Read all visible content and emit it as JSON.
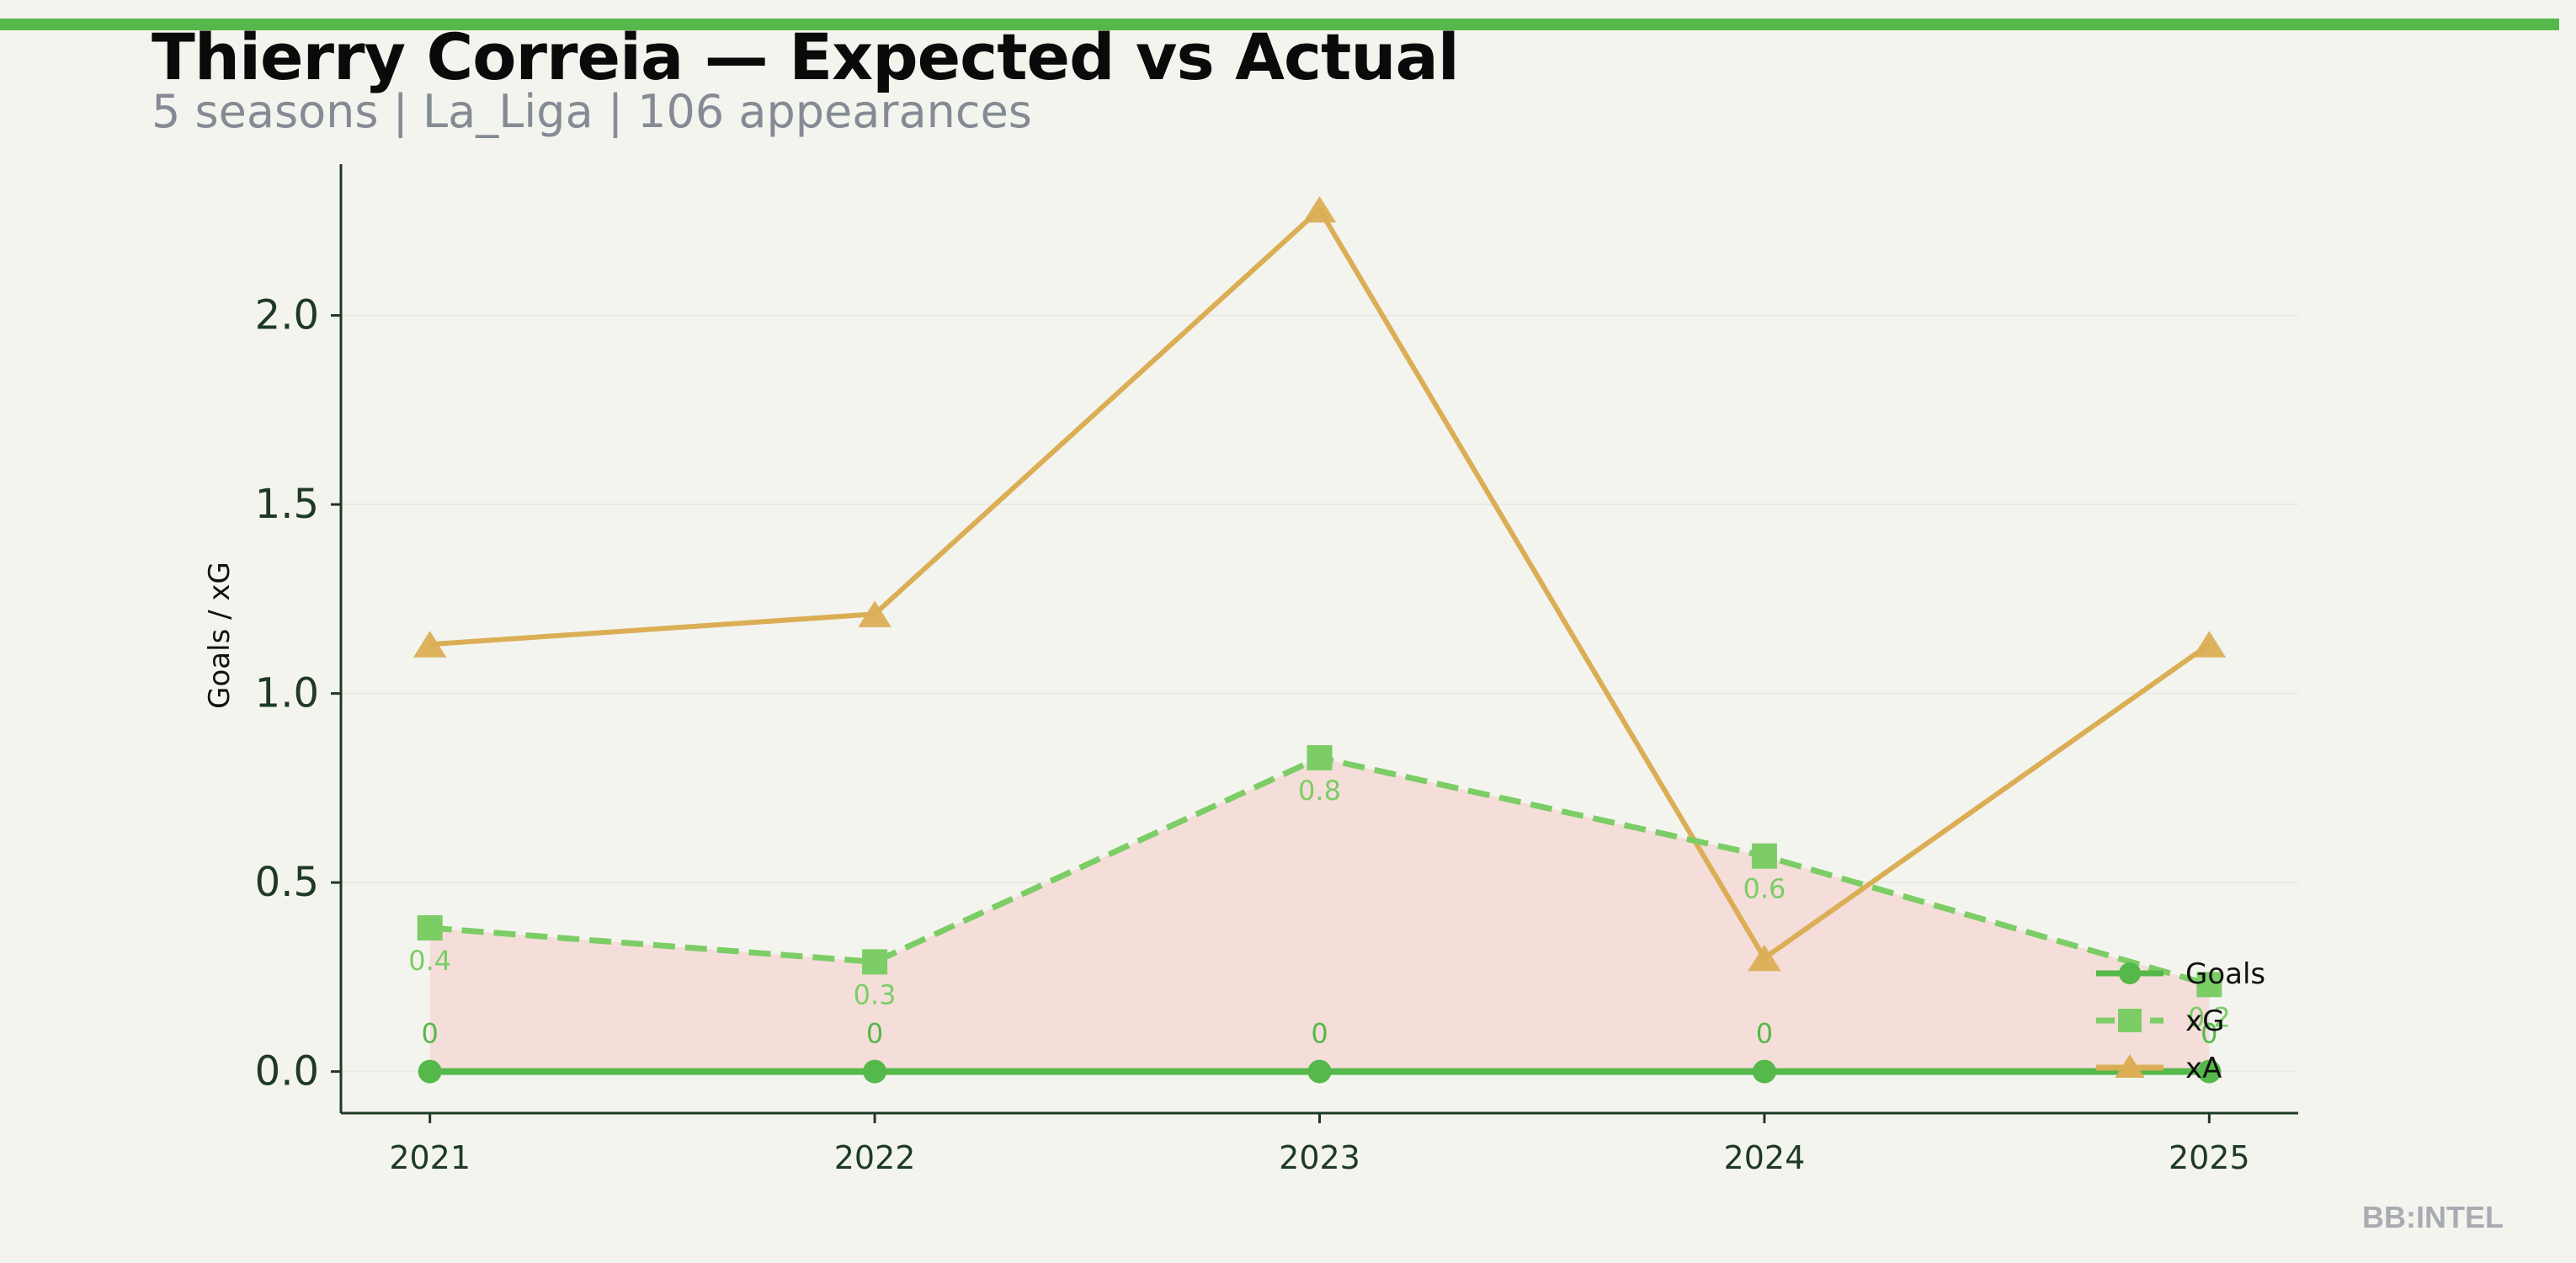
{
  "header": {
    "title": "Thierry Correia — Expected vs Actual",
    "subtitle": "5 seasons | La_Liga | 106 appearances"
  },
  "watermark": "BB:INTEL",
  "colors": {
    "background": "#f4f4ef",
    "accent_bar": "#55b84a",
    "goals": "#55b84a",
    "xg": "#7ccd66",
    "xa": "#dbae55",
    "xg_fill": "#f5dbd6",
    "axis": "#1e3a24",
    "grid": "#e9e9e3"
  },
  "chart_data": {
    "type": "line",
    "title": "Thierry Correia — Expected vs Actual",
    "subtitle": "5 seasons | La_Liga | 106 appearances",
    "xlabel": "",
    "ylabel": "Goals / xG",
    "categories": [
      "2021",
      "2022",
      "2023",
      "2024",
      "2025"
    ],
    "xlim": [
      2020.8,
      2025.2
    ],
    "ylim": [
      -0.11,
      2.4
    ],
    "yticks": [
      0.0,
      0.5,
      1.0,
      1.5,
      2.0
    ],
    "ytick_labels": [
      "0.0",
      "0.5",
      "1.0",
      "1.5",
      "2.0"
    ],
    "grid": true,
    "legend_position": "lower-right",
    "series": [
      {
        "name": "Goals",
        "marker": "circle",
        "line": "solid",
        "values": [
          0,
          0,
          0,
          0,
          0
        ],
        "data_labels": [
          "0",
          "0",
          "0",
          "0",
          "0"
        ]
      },
      {
        "name": "xG",
        "marker": "square",
        "line": "dashed",
        "fill_between_goals": true,
        "values": [
          0.38,
          0.29,
          0.83,
          0.57,
          0.23
        ],
        "data_labels": [
          "0.4",
          "0.3",
          "0.8",
          "0.6",
          "0.2"
        ]
      },
      {
        "name": "xA",
        "marker": "triangle",
        "line": "solid",
        "values": [
          1.13,
          1.21,
          2.28,
          0.3,
          1.13
        ]
      }
    ]
  }
}
